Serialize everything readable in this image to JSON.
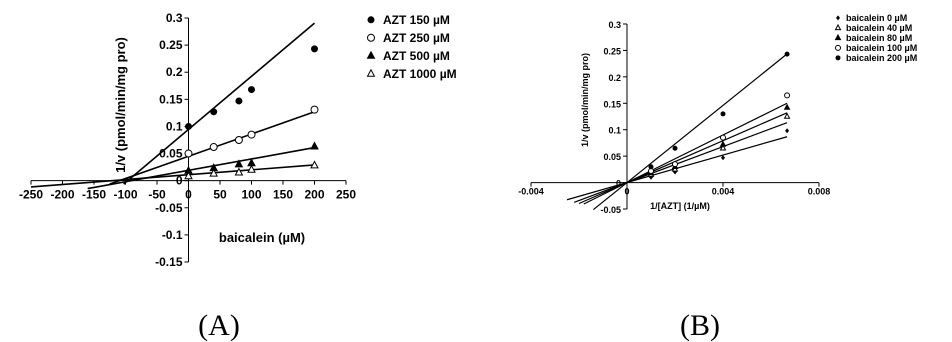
{
  "chart_data": [
    {
      "type": "scatter",
      "panel_label": "(A)",
      "xlabel": "baicalein (µM)",
      "ylabel": "1/v (pmol/min/mg pro)",
      "xlim": [
        -250,
        250
      ],
      "ylim": [
        -0.15,
        0.3
      ],
      "x_ticks": [
        "-250",
        "-200",
        "-150",
        "-100",
        "-50",
        "0",
        "50",
        "100",
        "150",
        "200",
        "250"
      ],
      "x_tick_values": [
        -250,
        -200,
        -150,
        -100,
        -50,
        0,
        50,
        100,
        150,
        200,
        250
      ],
      "y_ticks": [
        "-0.15",
        "-0.1",
        "-0.05",
        "0",
        "0.05",
        "0.1",
        "0.15",
        "0.2",
        "0.25",
        "0.3"
      ],
      "y_tick_values": [
        -0.15,
        -0.1,
        -0.05,
        0,
        0.05,
        0.1,
        0.15,
        0.2,
        0.25,
        0.3
      ],
      "grid": false,
      "legend_position": "top-right",
      "series": [
        {
          "name": "AZT 150 µM",
          "marker": "filled-circle",
          "x": [
            0,
            40,
            80,
            100,
            200
          ],
          "y": [
            0.1,
            0.127,
            0.147,
            0.168,
            0.243
          ],
          "fit": {
            "slope": 0.00098,
            "intercept": 0.0945,
            "x_range": [
              -103,
              200
            ]
          }
        },
        {
          "name": "AZT 250 µM",
          "marker": "open-circle",
          "x": [
            0,
            40,
            80,
            100,
            200
          ],
          "y": [
            0.05,
            0.062,
            0.075,
            0.085,
            0.131
          ],
          "fit": {
            "slope": 0.00041,
            "intercept": 0.045,
            "x_range": [
              -125,
              200
            ]
          }
        },
        {
          "name": "AZT 500 µM",
          "marker": "filled-triangle",
          "x": [
            0,
            40,
            80,
            100,
            200
          ],
          "y": [
            0.018,
            0.023,
            0.03,
            0.032,
            0.063
          ],
          "fit": {
            "slope": 0.00021,
            "intercept": 0.019,
            "x_range": [
              -160,
              200
            ]
          }
        },
        {
          "name": "AZT 1000 µM",
          "marker": "open-triangle",
          "x": [
            0,
            40,
            80,
            100,
            200
          ],
          "y": [
            0.008,
            0.013,
            0.015,
            0.02,
            0.028
          ],
          "fit": {
            "slope": 9e-05,
            "intercept": 0.011,
            "x_range": [
              -250,
              200
            ]
          }
        }
      ]
    },
    {
      "type": "scatter",
      "panel_label": "(B)",
      "xlabel": "1/[AZT] (1/µM)",
      "ylabel": "1/v (pmol/min/mg pro)",
      "xlim": [
        -0.004,
        0.008
      ],
      "ylim": [
        -0.05,
        0.3
      ],
      "x_ticks": [
        "-0.004",
        "0",
        "0.004",
        "0.008"
      ],
      "x_tick_values": [
        -0.004,
        0,
        0.004,
        0.008
      ],
      "y_ticks": [
        "-0.05",
        "0",
        "0.05",
        "0.1",
        "0.15",
        "0.2",
        "0.25",
        "0.3"
      ],
      "y_tick_values": [
        -0.05,
        0,
        0.05,
        0.1,
        0.15,
        0.2,
        0.25,
        0.3
      ],
      "grid": false,
      "legend_position": "top-right",
      "series": [
        {
          "name": "baicalein 0 µM",
          "marker": "filled-diamond",
          "x": [
            0.001,
            0.002,
            0.004,
            0.00667
          ],
          "y": [
            0.01,
            0.02,
            0.047,
            0.098
          ],
          "fit": {
            "slope": 13.0,
            "intercept": 0.0,
            "x_range": [
              -0.0025,
              0.00667
            ]
          }
        },
        {
          "name": "baicalein 40 µM",
          "marker": "open-triangle",
          "x": [
            0.001,
            0.002,
            0.004,
            0.00667
          ],
          "y": [
            0.015,
            0.025,
            0.065,
            0.125
          ],
          "fit": {
            "slope": 17.0,
            "intercept": 0.0,
            "x_range": [
              -0.0022,
              0.00667
            ]
          }
        },
        {
          "name": "baicalein 80 µM",
          "marker": "filled-triangle",
          "x": [
            0.001,
            0.002,
            0.004,
            0.00667
          ],
          "y": [
            0.018,
            0.03,
            0.072,
            0.142
          ],
          "fit": {
            "slope": 19.8,
            "intercept": 0.0,
            "x_range": [
              -0.002,
              0.00667
            ]
          }
        },
        {
          "name": "baicalein 100 µM",
          "marker": "open-circle",
          "x": [
            0.001,
            0.002,
            0.004,
            0.00667
          ],
          "y": [
            0.022,
            0.035,
            0.085,
            0.165
          ],
          "fit": {
            "slope": 22.5,
            "intercept": 0.0,
            "x_range": [
              -0.0018,
              0.00667
            ]
          }
        },
        {
          "name": "baicalein 200 µM",
          "marker": "filled-circle",
          "x": [
            0.001,
            0.002,
            0.004,
            0.00667
          ],
          "y": [
            0.03,
            0.065,
            0.13,
            0.243
          ],
          "fit": {
            "slope": 36.5,
            "intercept": 0.0,
            "x_range": [
              -0.0014,
              0.00667
            ]
          }
        }
      ]
    }
  ]
}
